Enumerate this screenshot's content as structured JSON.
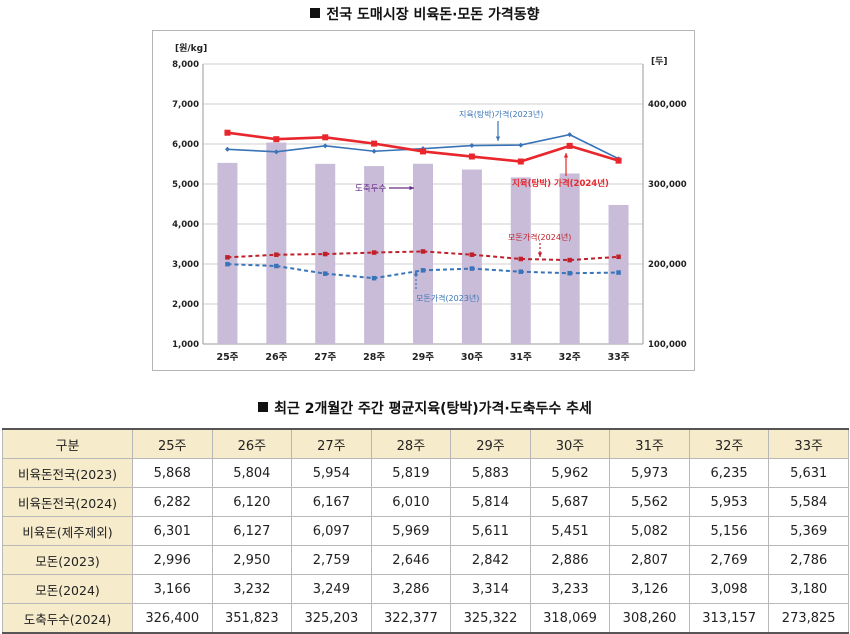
{
  "chart_title": "전국 도매시장 비육돈·모돈 가격동향",
  "table_title": "최근 2개월간 주간 평균지육(탕박)가격·도축두수 추세",
  "chart_data": {
    "type": "bar+line",
    "title": "전국 도매시장 비육돈·모돈 가격동향",
    "categories": [
      "25주",
      "26주",
      "27주",
      "28주",
      "29주",
      "30주",
      "31주",
      "32주",
      "33주"
    ],
    "y_left": {
      "unit": "[원/kg]",
      "lim": [
        1000,
        8000
      ],
      "ticks": [
        "1,000",
        "2,000",
        "3,000",
        "4,000",
        "5,000",
        "6,000",
        "7,000",
        "8,000"
      ]
    },
    "y_right": {
      "unit": "[두]",
      "lim": [
        100000,
        450000
      ],
      "ticks": [
        "100,000",
        "200,000",
        "300,000",
        "400,000"
      ]
    },
    "bar_series": {
      "name": "도축두수",
      "axis": "right",
      "color": "#c8bcd8",
      "values": [
        326400,
        351823,
        325203,
        322377,
        325322,
        318069,
        308260,
        313157,
        273825
      ]
    },
    "line_series": [
      {
        "name": "지육(탕박)가격(2023년)",
        "axis": "left",
        "color": "#3a74b8",
        "dash": false,
        "marker": "diamond",
        "values": [
          5868,
          5804,
          5954,
          5819,
          5883,
          5962,
          5973,
          6235,
          5631
        ]
      },
      {
        "name": "지육(탕박) 가격(2024년)",
        "axis": "left",
        "color": "#e8262c",
        "dash": false,
        "marker": "square",
        "values": [
          6282,
          6120,
          6167,
          6010,
          5814,
          5687,
          5562,
          5953,
          5584
        ]
      },
      {
        "name": "모돈가격(2024년)",
        "axis": "left",
        "color": "#c0202a",
        "dash": true,
        "marker": "square",
        "values": [
          3166,
          3232,
          3249,
          3286,
          3314,
          3233,
          3126,
          3098,
          3180
        ]
      },
      {
        "name": "모돈가격(2023년)",
        "axis": "left",
        "color": "#3a74b8",
        "dash": true,
        "marker": "square",
        "values": [
          2996,
          2950,
          2759,
          2646,
          2842,
          2886,
          2807,
          2769,
          2786
        ]
      }
    ],
    "annotations": [
      {
        "text": "지육(탕박)가격(2023년)",
        "color": "#3a74b8"
      },
      {
        "text": "지육(탕박) 가격(2024년)",
        "color": "#e8262c"
      },
      {
        "text": "도축두수",
        "color": "#6a2c8a"
      },
      {
        "text": "모돈가격(2024년)",
        "color": "#c0202a"
      },
      {
        "text": "모돈가격(2023년)",
        "color": "#3a74b8"
      }
    ],
    "grid": true
  },
  "table": {
    "headers": [
      "구분",
      "25주",
      "26주",
      "27주",
      "28주",
      "29주",
      "30주",
      "31주",
      "32주",
      "33주"
    ],
    "rows": [
      [
        "비육돈전국(2023)",
        "5,868",
        "5,804",
        "5,954",
        "5,819",
        "5,883",
        "5,962",
        "5,973",
        "6,235",
        "5,631"
      ],
      [
        "비육돈전국(2024)",
        "6,282",
        "6,120",
        "6,167",
        "6,010",
        "5,814",
        "5,687",
        "5,562",
        "5,953",
        "5,584"
      ],
      [
        "비육돈(제주제외)",
        "6,301",
        "6,127",
        "6,097",
        "5,969",
        "5,611",
        "5,451",
        "5,082",
        "5,156",
        "5,369"
      ],
      [
        "모돈(2023)",
        "2,996",
        "2,950",
        "2,759",
        "2,646",
        "2,842",
        "2,886",
        "2,807",
        "2,769",
        "2,786"
      ],
      [
        "모돈(2024)",
        "3,166",
        "3,232",
        "3,249",
        "3,286",
        "3,314",
        "3,233",
        "3,126",
        "3,098",
        "3,180"
      ],
      [
        "도축두수(2024)",
        "326,400",
        "351,823",
        "325,203",
        "322,377",
        "325,322",
        "318,069",
        "308,260",
        "313,157",
        "273,825"
      ]
    ]
  }
}
